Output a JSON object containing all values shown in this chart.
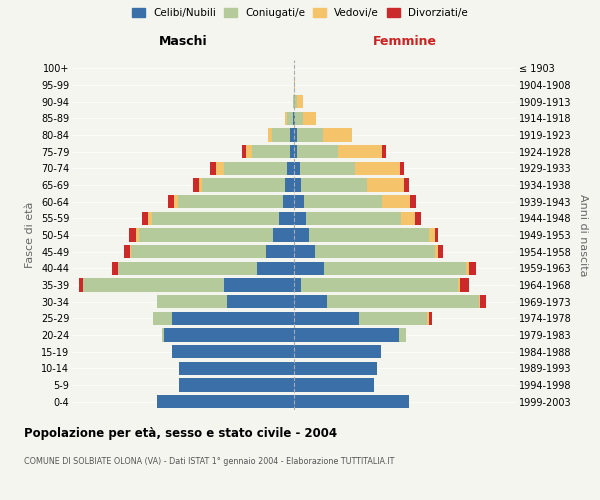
{
  "age_groups": [
    "0-4",
    "5-9",
    "10-14",
    "15-19",
    "20-24",
    "25-29",
    "30-34",
    "35-39",
    "40-44",
    "45-49",
    "50-54",
    "55-59",
    "60-64",
    "65-69",
    "70-74",
    "75-79",
    "80-84",
    "85-89",
    "90-94",
    "95-99",
    "100+"
  ],
  "birth_years": [
    "1999-2003",
    "1994-1998",
    "1989-1993",
    "1984-1988",
    "1979-1983",
    "1974-1978",
    "1969-1973",
    "1964-1968",
    "1959-1963",
    "1954-1958",
    "1949-1953",
    "1944-1948",
    "1939-1943",
    "1934-1938",
    "1929-1933",
    "1924-1928",
    "1919-1923",
    "1914-1918",
    "1909-1913",
    "1904-1908",
    "≤ 1903"
  ],
  "males_celibi": [
    185,
    155,
    155,
    165,
    175,
    165,
    90,
    95,
    50,
    38,
    28,
    20,
    15,
    12,
    10,
    5,
    5,
    2,
    0,
    0,
    0
  ],
  "males_coniugati": [
    0,
    0,
    0,
    0,
    4,
    25,
    95,
    190,
    188,
    182,
    182,
    172,
    142,
    112,
    85,
    52,
    25,
    8,
    2,
    0,
    0
  ],
  "males_vedovi": [
    0,
    0,
    0,
    0,
    0,
    0,
    0,
    0,
    0,
    2,
    3,
    5,
    5,
    5,
    10,
    8,
    5,
    2,
    0,
    0,
    0
  ],
  "males_divorziati": [
    0,
    0,
    0,
    0,
    0,
    0,
    0,
    5,
    8,
    8,
    10,
    8,
    8,
    8,
    8,
    5,
    0,
    0,
    0,
    0,
    0
  ],
  "females_nubili": [
    155,
    108,
    112,
    118,
    142,
    88,
    45,
    10,
    40,
    28,
    20,
    16,
    14,
    10,
    8,
    4,
    4,
    2,
    0,
    0,
    0
  ],
  "females_coniugate": [
    0,
    0,
    0,
    0,
    10,
    92,
    205,
    212,
    192,
    162,
    162,
    128,
    105,
    88,
    75,
    55,
    35,
    10,
    4,
    0,
    0
  ],
  "females_vedove": [
    0,
    0,
    0,
    0,
    0,
    2,
    2,
    2,
    4,
    4,
    8,
    20,
    38,
    50,
    60,
    60,
    40,
    18,
    8,
    2,
    0
  ],
  "females_divorziate": [
    0,
    0,
    0,
    0,
    0,
    5,
    8,
    12,
    10,
    8,
    4,
    8,
    8,
    8,
    5,
    5,
    0,
    0,
    0,
    0,
    0
  ],
  "color_celibi": "#3a6fa8",
  "color_coniugati": "#b5ca9a",
  "color_vedovi": "#f5c36a",
  "color_divorziati": "#cc2a2a",
  "xlim": 300,
  "title": "Popolazione per età, sesso e stato civile - 2004",
  "subtitle": "COMUNE DI SOLBIATE OLONA (VA) - Dati ISTAT 1° gennaio 2004 - Elaborazione TUTTITALIA.IT",
  "ylabel_left": "Fasce di età",
  "ylabel_right": "Anni di nascita",
  "label_maschi": "Maschi",
  "label_femmine": "Femmine",
  "legend_labels": [
    "Celibi/Nubili",
    "Coniugati/e",
    "Vedovi/e",
    "Divorziati/e"
  ],
  "bg_color": "#f5f5f0"
}
